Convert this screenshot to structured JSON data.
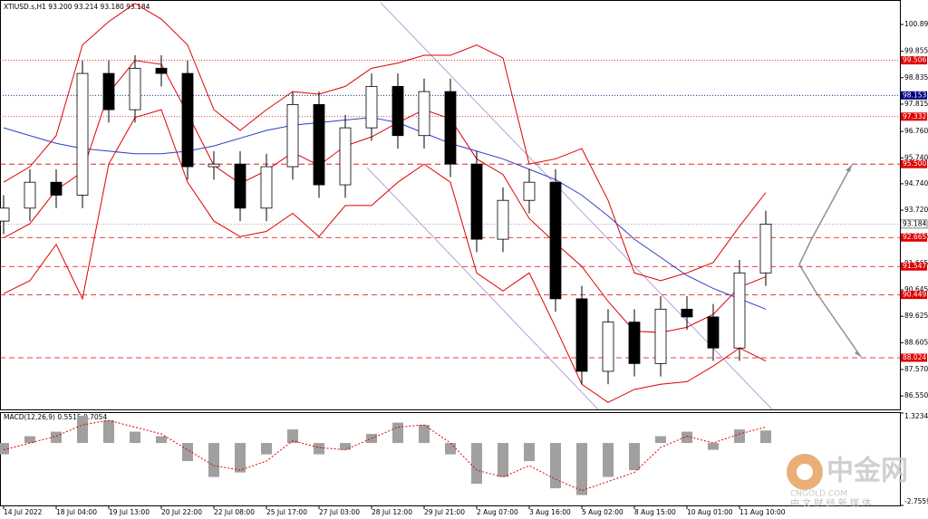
{
  "chart_data": [
    {
      "type": "candlestick",
      "title": "XTIUSD.s,H1  93.200 93.214 93.180 93.184",
      "categories": [
        "14 Jul 2022",
        null,
        "18 Jul 04:00",
        null,
        "19 Jul 13:00",
        null,
        "20 Jul 22:00",
        null,
        "22 Jul 08:00",
        null,
        "25 Jul 17:00",
        null,
        "27 Jul 03:00",
        null,
        "28 Jul 12:00",
        null,
        "29 Jul 21:00",
        null,
        "2 Aug 07:00",
        null,
        "3 Aug 16:00",
        null,
        "5 Aug 02:00",
        null,
        "8 Aug 15:00",
        null,
        "10 Aug 01:00",
        null,
        "11 Aug 10:00",
        null,
        null,
        null,
        null,
        null,
        null
      ],
      "open": [
        93.3,
        93.8,
        94.8,
        94.3,
        99.0,
        97.6,
        99.2,
        99.0,
        95.4,
        95.5,
        93.8,
        95.4,
        97.8,
        94.7,
        96.9,
        98.5,
        96.6,
        98.3,
        95.5,
        92.6,
        94.1,
        94.8,
        90.3,
        87.5,
        89.4,
        87.8,
        89.9,
        89.6,
        88.4,
        91.3,
        null,
        null,
        null,
        null,
        null
      ],
      "high": [
        94.3,
        95.3,
        95.3,
        99.5,
        99.5,
        99.7,
        99.7,
        99.5,
        96.0,
        96.0,
        95.9,
        98.3,
        98.3,
        97.4,
        99.0,
        99.0,
        98.8,
        98.8,
        96.0,
        94.6,
        95.3,
        95.3,
        90.8,
        89.9,
        89.9,
        90.4,
        90.4,
        90.1,
        91.8,
        93.7,
        null,
        null,
        null,
        null,
        null
      ],
      "low": [
        92.8,
        93.3,
        93.8,
        93.8,
        97.1,
        97.1,
        98.5,
        94.9,
        94.9,
        93.3,
        93.3,
        94.9,
        94.2,
        94.2,
        96.4,
        96.1,
        96.1,
        95.0,
        92.1,
        92.1,
        93.6,
        89.8,
        87.0,
        87.0,
        87.3,
        87.3,
        89.1,
        87.9,
        87.9,
        90.8,
        null,
        null,
        null,
        null,
        null
      ],
      "close": [
        93.8,
        94.8,
        94.3,
        99.0,
        97.6,
        99.2,
        99.0,
        95.4,
        95.5,
        93.8,
        95.4,
        97.8,
        94.7,
        96.9,
        98.5,
        96.6,
        98.3,
        95.5,
        92.6,
        94.1,
        94.8,
        90.3,
        87.5,
        89.4,
        87.8,
        89.9,
        89.6,
        88.4,
        91.3,
        93.184,
        null,
        null,
        null,
        null,
        null
      ],
      "up_fill": "#ffffff",
      "down_fill": "#000000",
      "overlays": [
        {
          "color": "#e00000",
          "values": [
            94.8,
            95.4,
            96.6,
            100.1,
            101.0,
            101.7,
            101.1,
            100.1,
            97.6,
            96.8,
            97.6,
            98.3,
            98.2,
            98.5,
            99.2,
            99.4,
            99.7,
            99.7,
            100.1,
            99.6,
            95.5,
            95.7,
            96.1,
            94.1,
            91.3,
            91.0,
            91.3,
            91.7,
            93.1,
            94.4,
            null,
            null,
            null,
            null,
            null
          ]
        },
        {
          "color": "#e00000",
          "values": [
            92.65,
            93.2,
            94.5,
            95.2,
            98.25,
            99.5,
            99.35,
            97.45,
            95.45,
            94.75,
            95.25,
            95.95,
            95.45,
            96.2,
            96.55,
            97.1,
            97.6,
            97.25,
            95.7,
            95.1,
            93.4,
            92.45,
            91.55,
            90.2,
            89.05,
            89.0,
            89.2,
            89.7,
            90.75,
            91.15,
            null,
            null,
            null,
            null,
            null
          ]
        },
        {
          "color": "#e00000",
          "values": [
            90.5,
            91.0,
            92.4,
            90.3,
            95.5,
            97.3,
            97.6,
            94.8,
            93.3,
            92.7,
            92.9,
            93.6,
            92.7,
            93.9,
            93.9,
            94.8,
            95.5,
            94.8,
            91.3,
            90.6,
            91.3,
            89.2,
            87.0,
            86.3,
            86.8,
            87.0,
            87.1,
            87.7,
            88.4,
            87.9,
            null,
            null,
            null,
            null,
            null
          ]
        },
        {
          "color": "#3040c0",
          "values": [
            96.9,
            96.6,
            96.3,
            96.1,
            96.0,
            95.9,
            95.9,
            96.0,
            96.2,
            96.5,
            96.8,
            97.0,
            97.1,
            97.2,
            97.3,
            97.1,
            96.7,
            96.3,
            96.0,
            95.7,
            95.3,
            94.9,
            94.3,
            93.5,
            92.6,
            91.9,
            91.2,
            90.7,
            90.3,
            89.9,
            null,
            null,
            null,
            null,
            null
          ]
        }
      ],
      "levels": [
        {
          "value": 99.506,
          "color": "#e00000",
          "dash": "1 2"
        },
        {
          "value": 98.153,
          "color": "#000080",
          "dash": "1 2"
        },
        {
          "value": 97.332,
          "color": "#e00000",
          "dash": "1 2"
        },
        {
          "value": 95.5,
          "label": "95.500",
          "color": "#e00000",
          "dash": "6 4"
        },
        {
          "value": 93.184,
          "color": "#ffffff",
          "dash": "1 2"
        },
        {
          "value": 92.665,
          "color": "#e00000",
          "dash": "6 4"
        },
        {
          "value": 91.547,
          "color": "#e00000",
          "dash": "6 4"
        },
        {
          "value": 90.449,
          "color": "#e00000",
          "dash": "6 4"
        },
        {
          "value": 88.024,
          "color": "#e00000",
          "dash": "6 4"
        }
      ],
      "ylim": [
        86.03,
        101.73
      ],
      "yticks": [
        {
          "value": 100.89,
          "label": "100.890"
        },
        99.855,
        98.835,
        97.815,
        {
          "value": 96.76,
          "label": "96.760"
        },
        {
          "value": 95.74,
          "label": "95.740"
        },
        {
          "value": 94.74,
          "label": "94.740"
        },
        {
          "value": 93.72,
          "label": "93.720"
        },
        92.695,
        91.665,
        90.645,
        89.625,
        88.605,
        {
          "value": 87.57,
          "label": "87.570"
        },
        {
          "value": 86.55,
          "label": "86.550"
        }
      ]
    },
    {
      "type": "macd",
      "title": "MACD(12,26,9) 0.5515 0.7054",
      "values": [
        -0.5,
        0.3,
        0.5,
        1.2,
        1.0,
        0.5,
        0.3,
        -0.8,
        -1.5,
        -1.3,
        -0.5,
        0.6,
        -0.5,
        -0.3,
        0.4,
        0.9,
        0.8,
        -0.5,
        -1.8,
        -1.5,
        -0.8,
        -2.0,
        -2.3,
        -1.5,
        -1.2,
        0.3,
        0.5,
        -0.3,
        0.6,
        0.5515,
        null,
        null,
        null,
        null,
        null
      ],
      "signal": [
        -0.3,
        0.0,
        0.3,
        0.8,
        1.0,
        0.7,
        0.4,
        -0.3,
        -1.0,
        -1.2,
        -0.8,
        0.1,
        -0.2,
        -0.3,
        0.2,
        0.7,
        0.8,
        0.0,
        -1.2,
        -1.5,
        -1.0,
        -1.6,
        -2.1,
        -1.7,
        -1.3,
        -0.2,
        0.3,
        0.0,
        0.4,
        0.7054,
        null,
        null,
        null,
        null,
        null
      ],
      "color": "#a0a0a0",
      "signal_color": "#e00000",
      "ylim": [
        -2.7559,
        1.3234
      ],
      "yticks": [
        1.3234,
        -2.7559
      ]
    }
  ],
  "watermark": {
    "brand": "中金网",
    "site": "CNGOLD.COM",
    "tagline": "中 文 财 经 新 媒 体"
  }
}
